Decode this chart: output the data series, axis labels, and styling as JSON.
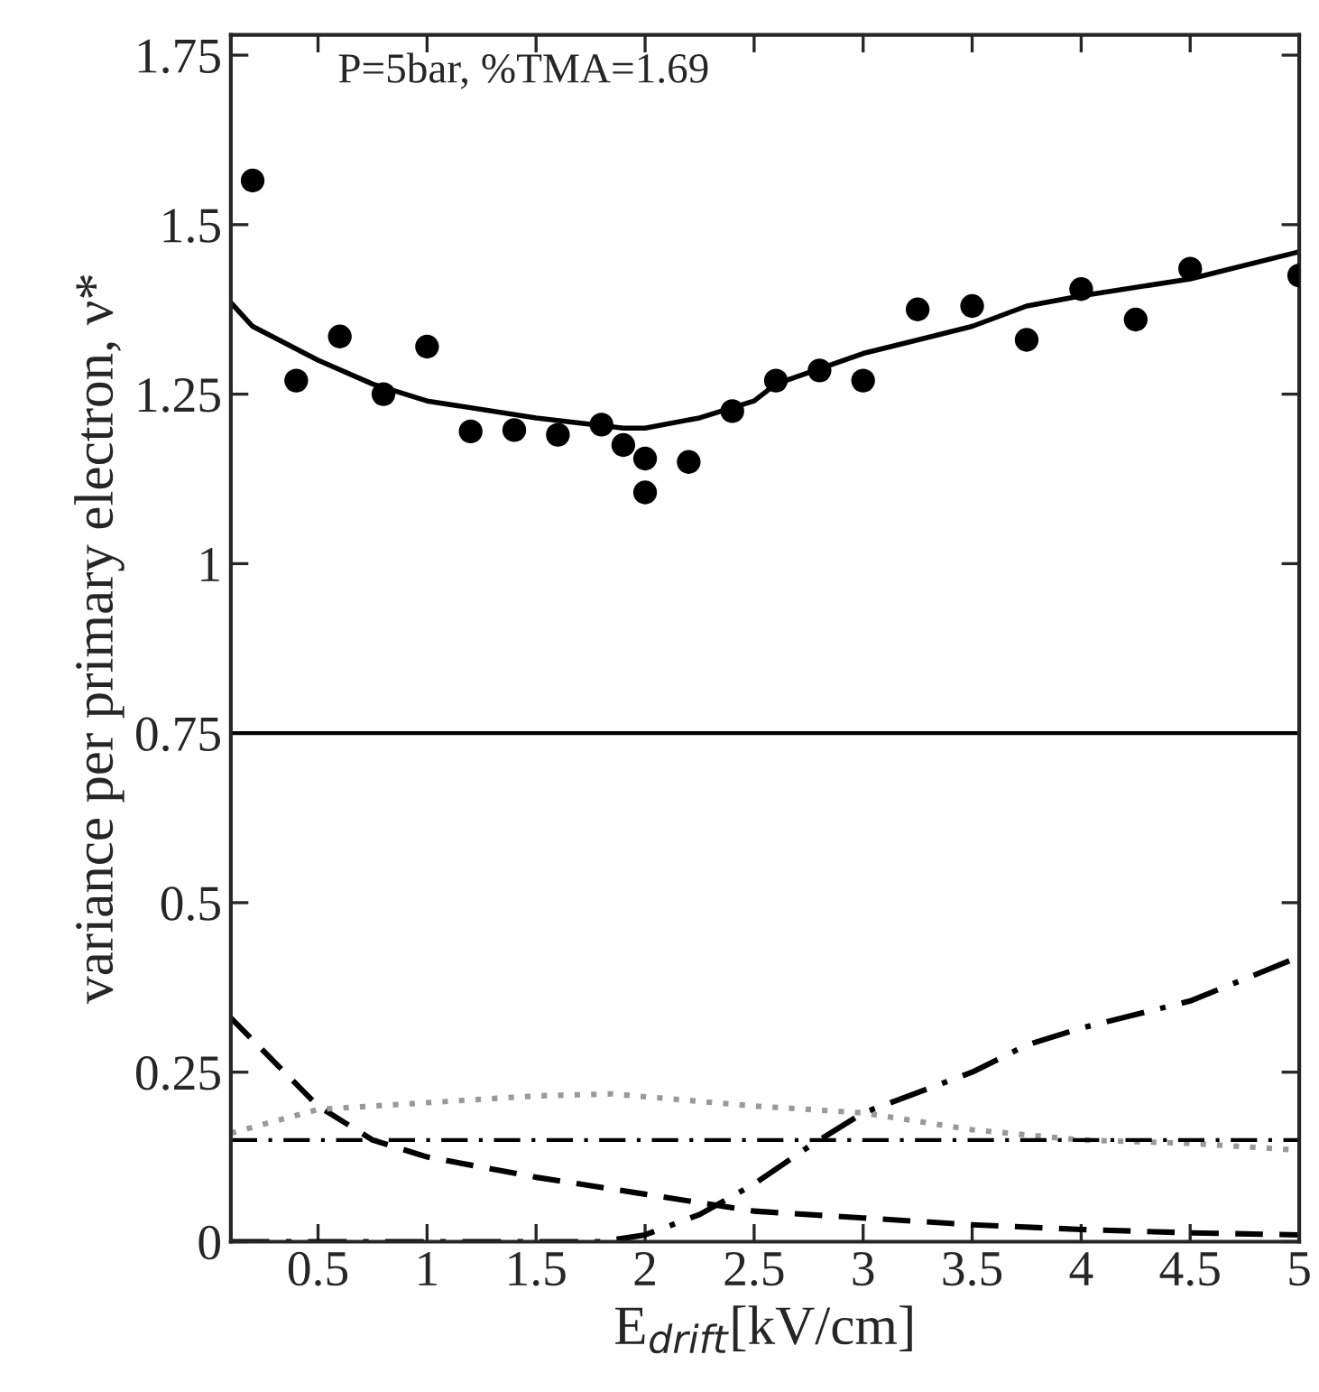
{
  "chart_data": {
    "type": "line",
    "xlabel": "E$_{drift}$[kV/cm]",
    "ylabel": "variance per primary electron, ν*",
    "annotations": [
      "P=5bar, %TMA=1.69"
    ],
    "xlim": [
      0.1,
      5
    ],
    "xticks": [
      0.5,
      1,
      1.5,
      2,
      2.5,
      3,
      3.5,
      4,
      4.5,
      5
    ],
    "ylim": [
      0,
      1.78
    ],
    "yticks": [
      0,
      0.25,
      0.5,
      0.75,
      1,
      1.25,
      1.5,
      1.75
    ],
    "grid": false,
    "legend": false,
    "ref_lines": [
      {
        "axis": "y",
        "value": 0.75,
        "color": "#000000",
        "line_style": "solid"
      },
      {
        "axis": "y",
        "value": 0.15,
        "color": "#000000",
        "line_style": "dashdot"
      }
    ],
    "series": [
      {
        "type": "scatter",
        "color": "#000000",
        "marker": "circle",
        "x": [
          0.2,
          0.4,
          0.6,
          0.8,
          1.0,
          1.2,
          1.4,
          1.6,
          1.8,
          1.9,
          2.0,
          2.0,
          2.2,
          2.4,
          2.6,
          2.8,
          3.0,
          3.25,
          3.5,
          3.75,
          4.0,
          4.25,
          4.5,
          5.0
        ],
        "values": [
          1.565,
          1.27,
          1.335,
          1.25,
          1.32,
          1.195,
          1.197,
          1.19,
          1.205,
          1.175,
          1.155,
          1.105,
          1.15,
          1.225,
          1.27,
          1.285,
          1.27,
          1.375,
          1.38,
          1.33,
          1.405,
          1.36,
          1.435,
          1.425
        ]
      },
      {
        "color": "#000000",
        "line_style": "solid",
        "x": [
          0.1,
          0.2,
          0.5,
          0.75,
          1,
          1.5,
          1.9,
          2,
          2.25,
          2.5,
          2.6,
          3,
          3.5,
          3.75,
          4,
          4.5,
          5
        ],
        "values": [
          1.385,
          1.35,
          1.3,
          1.265,
          1.24,
          1.215,
          1.2,
          1.2,
          1.215,
          1.24,
          1.265,
          1.31,
          1.35,
          1.38,
          1.395,
          1.42,
          1.46
        ]
      },
      {
        "color": "#000000",
        "line_style": "dashed",
        "x": [
          0.1,
          0.5,
          0.75,
          1,
          1.5,
          2,
          2.5,
          3,
          3.5,
          4,
          4.5,
          5
        ],
        "values": [
          0.33,
          0.2,
          0.15,
          0.125,
          0.095,
          0.07,
          0.045,
          0.035,
          0.025,
          0.018,
          0.013,
          0.01
        ]
      },
      {
        "color": "#999999",
        "line_style": "dotted",
        "x": [
          0.1,
          0.5,
          1,
          1.5,
          1.85,
          2.5,
          3,
          3.5,
          4,
          4.5,
          5
        ],
        "values": [
          0.16,
          0.195,
          0.205,
          0.215,
          0.218,
          0.2,
          0.19,
          0.165,
          0.15,
          0.145,
          0.135
        ]
      },
      {
        "color": "#000000",
        "line_style": "dashdot",
        "x": [
          0.1,
          1.8,
          2,
          2.25,
          2.5,
          2.75,
          3,
          3.5,
          3.75,
          4,
          4.5,
          5
        ],
        "values": [
          0,
          0,
          0.01,
          0.04,
          0.085,
          0.14,
          0.19,
          0.25,
          0.29,
          0.315,
          0.355,
          0.42
        ]
      }
    ]
  }
}
